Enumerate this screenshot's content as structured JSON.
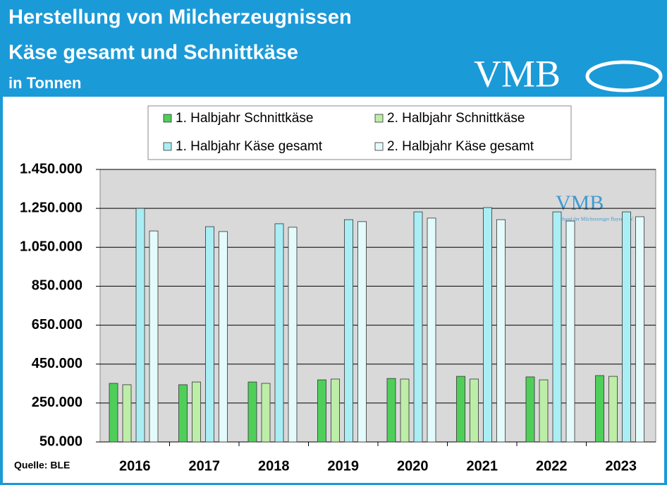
{
  "chart_data": {
    "type": "bar",
    "title": "Herstellung von Milcherzeugnissen",
    "subtitle": "Käse gesamt und Schnittkäse",
    "unit": "in Tonnen",
    "logo": "VMB",
    "watermark": "VMB",
    "watermark_subtitle": "Verband der Milcherzeuger Bayern e.V.",
    "source": "Quelle: BLE",
    "categories": [
      "2016",
      "2017",
      "2018",
      "2019",
      "2020",
      "2021",
      "2022",
      "2023"
    ],
    "series": [
      {
        "name": "1. Halbjahr Schnittkäse",
        "color": "#4fcf5a",
        "values": [
          351000,
          344000,
          358000,
          369000,
          376000,
          387000,
          384000,
          391000
        ]
      },
      {
        "name": "2. Halbjahr Schnittkäse",
        "color": "#bdeea8",
        "values": [
          344000,
          358000,
          351000,
          373000,
          373000,
          373000,
          369000,
          387000
        ]
      },
      {
        "name": "1. Halbjahr Käse gesamt",
        "color": "#a9eef4",
        "values": [
          1250000,
          1156000,
          1171000,
          1192000,
          1232000,
          1254000,
          1232000,
          1232000
        ]
      },
      {
        "name": "2. Halbjahr Käse gesamt",
        "color": "#e4fbfb",
        "values": [
          1134000,
          1131000,
          1153000,
          1182000,
          1200000,
          1192000,
          1185000,
          1207000
        ]
      }
    ],
    "ylim": [
      50000,
      1450000
    ],
    "yticks": [
      {
        "value": 50000,
        "label": "50.000"
      },
      {
        "value": 250000,
        "label": "250.000"
      },
      {
        "value": 450000,
        "label": "450.000"
      },
      {
        "value": 650000,
        "label": "650.000"
      },
      {
        "value": 850000,
        "label": "850.000"
      },
      {
        "value": 1050000,
        "label": "1.050.000"
      },
      {
        "value": 1250000,
        "label": "1.250.000"
      },
      {
        "value": 1450000,
        "label": "1.450.000"
      }
    ],
    "grid": true
  }
}
